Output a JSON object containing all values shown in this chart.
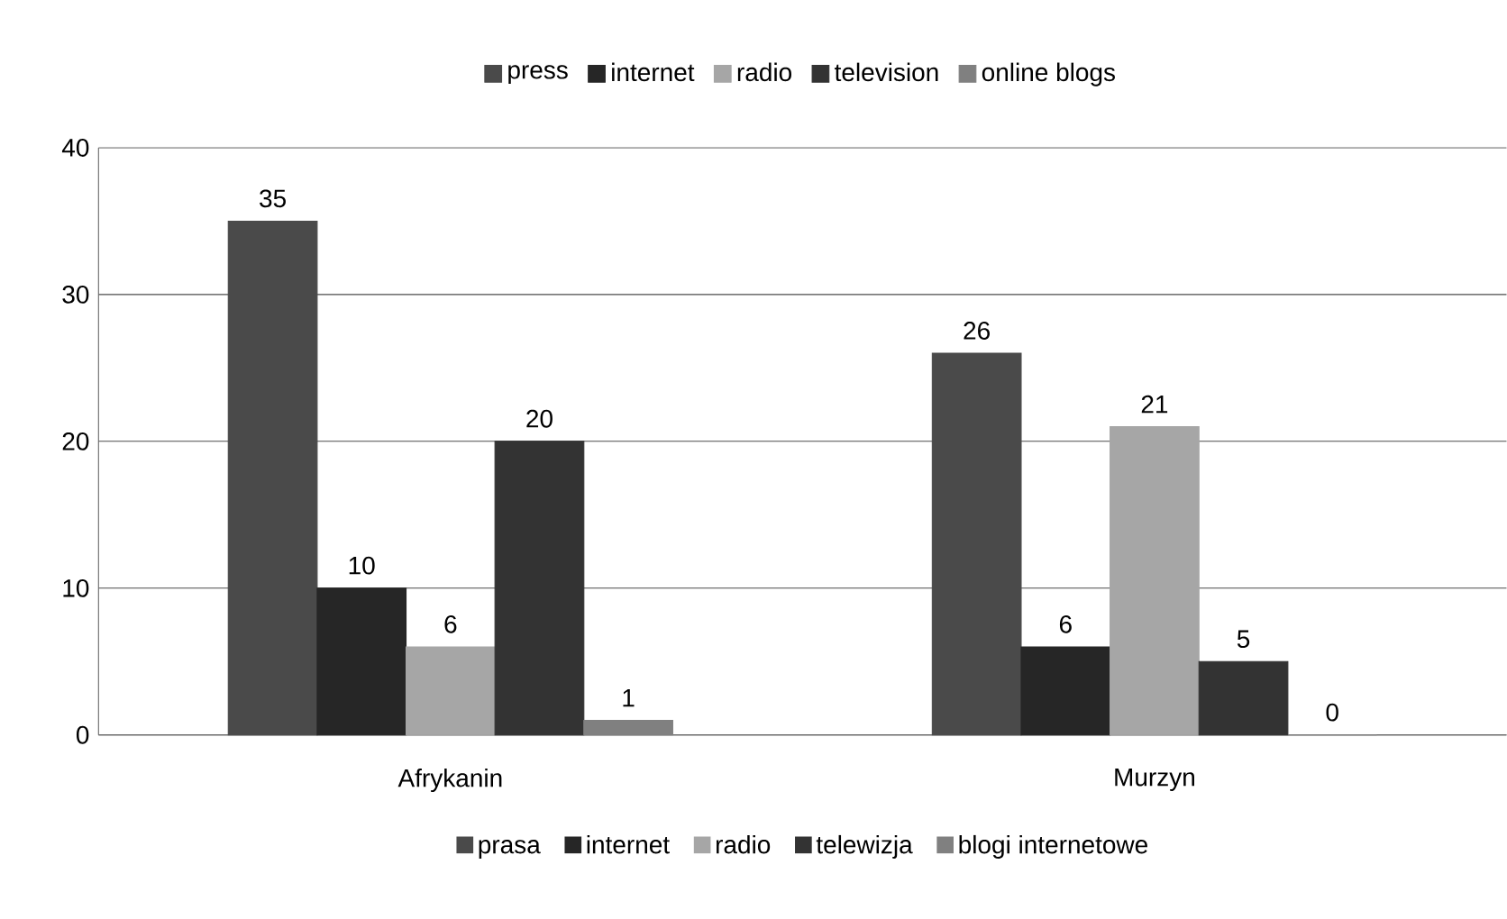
{
  "chart_data": {
    "type": "bar",
    "categories": [
      "Afrykanin",
      "Murzyn"
    ],
    "series": [
      {
        "name": "press",
        "color": "#4a4a4a",
        "values": [
          35,
          26
        ]
      },
      {
        "name": "internet",
        "color": "#262626",
        "values": [
          10,
          6
        ]
      },
      {
        "name": "radio",
        "color": "#a6a6a6",
        "values": [
          6,
          21
        ]
      },
      {
        "name": "television",
        "color": "#333333",
        "values": [
          20,
          5
        ]
      },
      {
        "name": "online blogs",
        "color": "#808080",
        "values": [
          1,
          0
        ]
      }
    ],
    "ylim": [
      0,
      40
    ],
    "yticks": [
      0,
      10,
      20,
      30,
      40
    ],
    "grid": "y",
    "legend": "top",
    "data_labels": true,
    "annotations": [
      "prasa",
      "internet",
      "radio",
      "telewizja",
      "blogi internetowe"
    ]
  }
}
